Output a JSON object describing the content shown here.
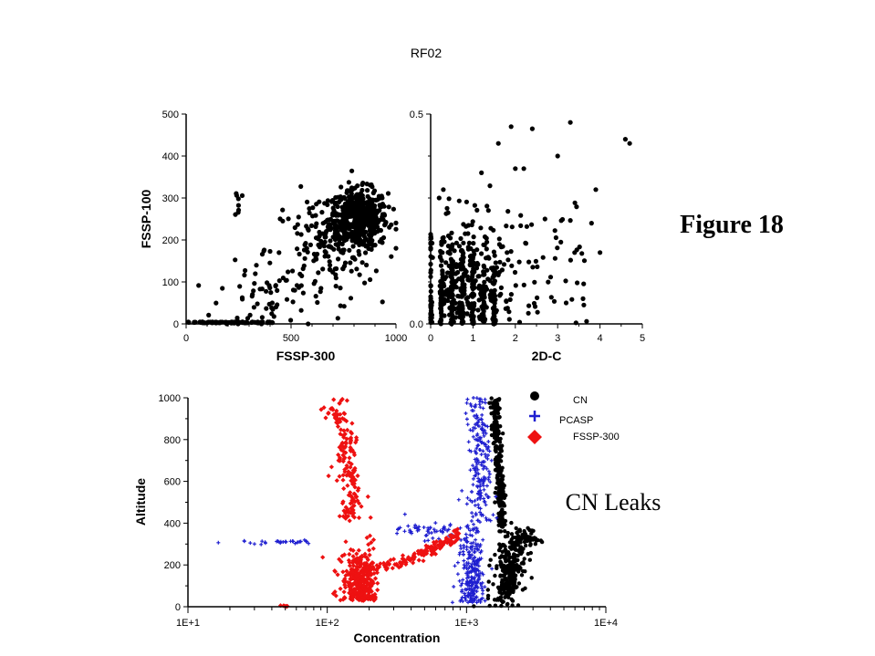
{
  "title": "RF02",
  "figure_label": "Figure 18",
  "annotation": "CN Leaks",
  "colors": {
    "cn": "#000000",
    "pcasp": "#1f1fd0",
    "fssp300": "#ee1111"
  },
  "chart_data": [
    {
      "type": "scatter",
      "xlabel": "FSSP-300",
      "ylabel": "FSSP-100",
      "xlim": [
        0,
        1000
      ],
      "ylim": [
        0,
        500
      ],
      "x_ticks": [
        "0",
        "500",
        "1000"
      ],
      "y_ticks": [
        "0",
        "100",
        "200",
        "300",
        "400",
        "500"
      ],
      "clusters": [
        {
          "cx": 820,
          "cy": 250,
          "sx": 70,
          "sy": 35,
          "n": 520
        },
        {
          "cx": 650,
          "cy": 170,
          "sx": 120,
          "sy": 70,
          "n": 130
        },
        {
          "cx": 380,
          "cy": 80,
          "sx": 110,
          "sy": 50,
          "n": 60
        },
        {
          "cx": 250,
          "cy": 290,
          "sx": 8,
          "sy": 20,
          "n": 8
        }
      ],
      "baseline": {
        "x0": 0,
        "x1": 420,
        "y": 2,
        "n": 80
      },
      "grid": false
    },
    {
      "type": "scatter",
      "xlabel": "2D-C",
      "ylabel": "",
      "xlim": [
        0,
        5
      ],
      "ylim": [
        0.0,
        0.5
      ],
      "x_ticks": [
        "0",
        "1",
        "2",
        "3",
        "4",
        "5"
      ],
      "y_ticks": [
        "0.0",
        "0.5"
      ],
      "columns": [
        0,
        0.25,
        0.5,
        0.75,
        1.0,
        1.25,
        1.5
      ],
      "points": [
        [
          1.9,
          0.47
        ],
        [
          2.4,
          0.465
        ],
        [
          3.3,
          0.48
        ],
        [
          3.0,
          0.4
        ],
        [
          4.6,
          0.44
        ],
        [
          4.7,
          0.43
        ],
        [
          3.9,
          0.32
        ],
        [
          3.8,
          0.24
        ],
        [
          4.0,
          0.17
        ],
        [
          3.2,
          0.05
        ],
        [
          1.6,
          0.43
        ],
        [
          2.2,
          0.37
        ],
        [
          2.0,
          0.37
        ],
        [
          1.2,
          0.36
        ],
        [
          0.3,
          0.32
        ],
        [
          0.2,
          0.3
        ],
        [
          2.7,
          0.25
        ],
        [
          3.4,
          0.17
        ],
        [
          3.6,
          0.06
        ]
      ],
      "grid": false
    },
    {
      "type": "scatter",
      "xlabel": "Concentration",
      "ylabel": "Altitude",
      "x_scale": "log",
      "xlim": [
        10,
        10000
      ],
      "ylim": [
        0,
        1000
      ],
      "x_ticks": [
        "1E+1",
        "1E+2",
        "1E+3",
        "1E+4"
      ],
      "y_ticks": [
        "0",
        "200",
        "400",
        "600",
        "800",
        "1000"
      ],
      "legend_position": "top-right",
      "series": [
        {
          "name": "CN",
          "marker": "circle"
        },
        {
          "name": "PCASP",
          "marker": "plus"
        },
        {
          "name": "FSSP-300",
          "marker": "diamond"
        }
      ],
      "grid": false
    }
  ]
}
